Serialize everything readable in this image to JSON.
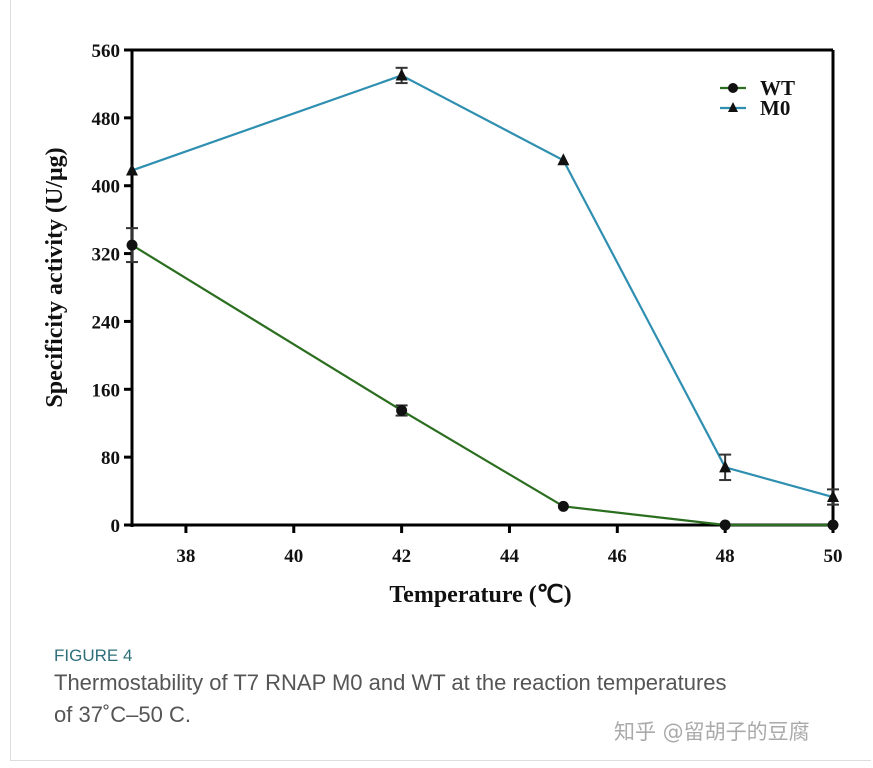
{
  "chart_data": {
    "type": "line",
    "xlabel": "Temperature (℃)",
    "ylabel": "Specificity activity (U/μg)",
    "xlim": [
      37,
      50
    ],
    "ylim": [
      0,
      560
    ],
    "xticks": [
      38,
      40,
      42,
      44,
      46,
      48,
      50
    ],
    "yticks": [
      0,
      80,
      160,
      240,
      320,
      400,
      480,
      560
    ],
    "legend_position": "top-right",
    "grid": false,
    "series": [
      {
        "name": "WT",
        "color": "#2b6e1f",
        "marker": "circle",
        "x": [
          37,
          42,
          45,
          48,
          50
        ],
        "y": [
          330,
          135,
          22,
          0,
          0
        ],
        "error": [
          20,
          6,
          0,
          0,
          0
        ]
      },
      {
        "name": "M0",
        "color": "#2e8fb0",
        "marker": "triangle",
        "x": [
          37,
          42,
          45,
          48,
          50
        ],
        "y": [
          418,
          530,
          430,
          68,
          33
        ],
        "error": [
          0,
          9,
          0,
          15,
          9
        ]
      }
    ]
  },
  "caption": {
    "label": "FIGURE 4",
    "text": "Thermostability of T7 RNAP M0 and WT at the reaction temperatures of 37˚C–50 C."
  },
  "watermark": "知乎 @留胡子的豆腐"
}
